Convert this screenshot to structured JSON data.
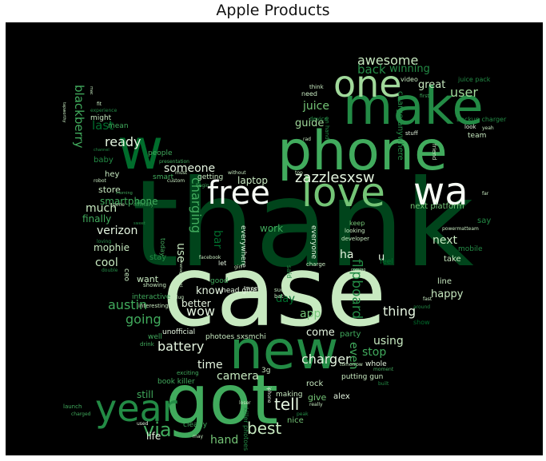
{
  "title": "Apple Products",
  "palette": [
    "#00441b",
    "#006d2c",
    "#238b45",
    "#41ab5d",
    "#74c476",
    "#a1d99b",
    "#c7e9c0",
    "#e5f5e0",
    "#f7fcf5"
  ],
  "words": {
    "thank": "thank",
    "case": "case",
    "got": "got",
    "new": "new",
    "phone": "phone",
    "make": "make",
    "love": "love",
    "wa": "wa",
    "free": "free",
    "one": "one",
    "w": "w",
    "year": "year",
    "via": "via",
    "best": "best",
    "zazzlesxsw": "zazzlesxsw",
    "awesome": "awesome",
    "back": "back",
    "winning": "winning",
    "user": "user",
    "great": "great",
    "juice": "juice",
    "guide": "guide",
    "tell": "tell",
    "charger": "charger",
    "thing": "thing",
    "happy": "happy",
    "app": "app",
    "come": "come",
    "using": "using",
    "stop": "stop",
    "even": "even",
    "flipboard": "flipboard",
    "day": "day",
    "next": "next",
    "next_platform": "next platform",
    "say": "say",
    "ha": "ha",
    "u": "u",
    "blackberry": "blackberry",
    "last": "last",
    "ready": "ready",
    "hey": "hey",
    "baby": "baby",
    "someone": "someone",
    "store": "store",
    "smartphone": "smartphone",
    "charging": "charging",
    "use": "use",
    "laptop": "laptop",
    "much": "much",
    "finally": "finally",
    "verizon": "verizon",
    "mophie": "mophie",
    "cool": "cool",
    "want": "want",
    "austin": "austin",
    "going": "going",
    "battery": "battery",
    "wow": "wow",
    "better": "better",
    "know": "know",
    "work": "work",
    "bar": "bar",
    "time": "time",
    "camera": "camera",
    "hand": "hand",
    "life": "life",
    "still": "still",
    "give": "give",
    "alex": "alex",
    "rock": "rock",
    "making": "making",
    "nice": "nice",
    "putting_gun": "putting gun",
    "whole": "whole",
    "book_killer": "book killer",
    "clearly": "clearly",
    "unofficial": "unofficial",
    "interactive": "interactive",
    "everywhere": "everywhere",
    "everyone": "everyone",
    "party": "party",
    "line": "line",
    "take": "take",
    "mobile": "mobile",
    "3g": "3g",
    "might": "might",
    "mean": "mean",
    "people": "people",
    "smart": "smart",
    "getting": "getting",
    "ceo": "ceo",
    "well": "well",
    "photoes": "photoes sxsmchi",
    "head_give": "head give",
    "showing": "showing",
    "drink": "drink",
    "interesting": "interesting",
    "tweet": "tweet",
    "suck": "suck",
    "bat": "bat",
    "feel": "feel",
    "said": "said",
    "today": "today",
    "developer": "developer",
    "looking": "looking",
    "keep": "keep",
    "powermattteam": "powermatteam",
    "backup_charger": "backup charger",
    "juice_pack": "juice pack",
    "video": "video",
    "team": "team",
    "look": "look",
    "yeah": "yeah",
    "stuff": "stuff",
    "friend": "friend",
    "charge_anywhere": "charge anywhere",
    "device": "device",
    "need": "need",
    "think": "think",
    "far": "far",
    "let": "let",
    "gone": "gone",
    "charge": "charge",
    "exciting": "exciting",
    "loser": "loser",
    "really": "really",
    "launch": "launch",
    "charged": "charged",
    "used": "used",
    "may": "may",
    "cover": "cover",
    "tomorrow": "tomorrow",
    "iphone": "iphone",
    "killer_photoes": "killer photoes",
    "first": "first",
    "fit": "fit",
    "experience": "experience",
    "robot": "robot",
    "morning": "morning",
    "custom": "custom",
    "begin": "begin",
    "without": "without",
    "top": "top",
    "rad": "rad",
    "on_hand": "on hand",
    "stay": "stay",
    "facebook": "facebook",
    "good": "good",
    "plug": "plug",
    "moment": "moment",
    "built": "built",
    "fast": "fast",
    "show": "show",
    "around": "around",
    "coming": "coming",
    "peak": "peak",
    "girl": "girl",
    "must": "must",
    "presentation": "presentation",
    "officially": "officially",
    "sweet": "sweet",
    "loving": "loving",
    "double": "double",
    "management": "management",
    "mac": "mac",
    "tapworthy": "tapworthy",
    "channel": "channel"
  }
}
